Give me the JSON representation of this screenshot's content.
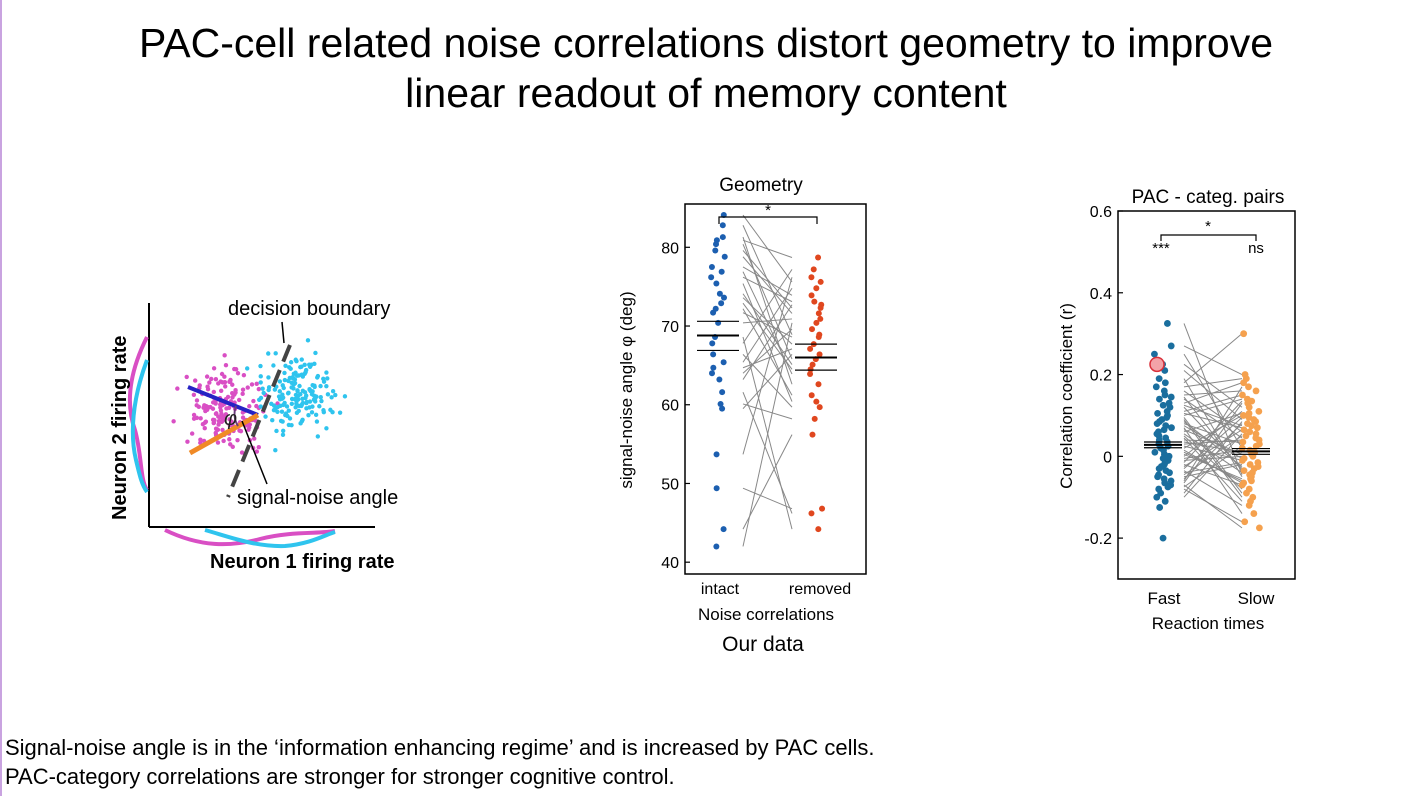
{
  "slide": {
    "title_line1": "PAC-cell related noise correlations distort geometry to improve",
    "title_line2": "linear readout of memory content",
    "bottom_line1": "Signal-noise angle is in the ‘information enhancing regime’ and is increased by PAC cells.",
    "bottom_line2": "PAC-category correlations are stronger for stronger cognitive control."
  },
  "colors": {
    "magenta": "#d94fc4",
    "cyan": "#2fc4ee",
    "blue_line": "#2622c4",
    "orange_line": "#f08a26",
    "intact": "#1c5fb0",
    "removed": "#e0471f",
    "fast": "#1a6e9e",
    "slow": "#f5a14e",
    "pair_line": "#888888"
  },
  "schematic": {
    "y_label": "Neuron 2 firing rate",
    "x_label": "Neuron 1 firing rate",
    "decision_label": "decision boundary",
    "angle_label": "signal-noise angle",
    "phi_symbol": "φ"
  },
  "chart_data": [
    {
      "type": "scatter",
      "title": "Geometry",
      "subtitle": "Our data",
      "xlabel": "Noise correlations",
      "ylabel": "signal-noise angle φ (deg)",
      "categories": [
        "intact",
        "removed"
      ],
      "ylim": [
        38.5,
        85.5
      ],
      "yticks": [
        40,
        50,
        60,
        70,
        80
      ],
      "significance": "*",
      "series": [
        {
          "name": "intact",
          "mean": 68.8,
          "sem_low": 66.9,
          "sem_high": 70.6,
          "values": [
            84.1,
            82.8,
            81.3,
            80.9,
            80.4,
            79.6,
            78.8,
            77.5,
            76.9,
            76.2,
            75.4,
            74.1,
            73.6,
            72.9,
            72.2,
            71.7,
            70.4,
            68.6,
            67.8,
            66.4,
            65.4,
            64.7,
            64.0,
            63.2,
            61.6,
            60.1,
            59.5,
            53.7,
            49.4,
            44.2,
            42.0
          ]
        },
        {
          "name": "removed",
          "mean": 66.0,
          "sem_low": 64.4,
          "sem_high": 67.7,
          "values": [
            78.7,
            77.2,
            76.2,
            75.6,
            74.8,
            73.9,
            73.1,
            72.7,
            72.3,
            71.6,
            70.9,
            70.4,
            69.6,
            68.9,
            68.6,
            67.7,
            67.1,
            66.4,
            65.8,
            65.1,
            64.5,
            63.9,
            62.6,
            61.2,
            60.4,
            59.7,
            58.2,
            56.2,
            46.8,
            46.2,
            44.2
          ]
        }
      ]
    },
    {
      "type": "scatter",
      "title": "PAC - categ. pairs",
      "xlabel": "Reaction times",
      "ylabel": "Correlation coefficient (r)",
      "categories": [
        "Fast",
        "Slow"
      ],
      "ylim": [
        -0.3,
        0.6
      ],
      "yticks": [
        -0.2,
        0,
        0.2,
        0.4,
        0.6
      ],
      "ytick_labels": [
        "-0.2",
        "0",
        "0.2",
        "0.4",
        "0.6"
      ],
      "significance": "*",
      "group_significance": [
        "***",
        "ns"
      ],
      "highlighted_point": 0.225,
      "series": [
        {
          "name": "Fast",
          "mean": 0.028,
          "sem_low": 0.021,
          "sem_high": 0.035,
          "values": [
            0.325,
            0.27,
            0.25,
            0.225,
            0.21,
            0.19,
            0.18,
            0.17,
            0.16,
            0.15,
            0.145,
            0.14,
            0.13,
            0.125,
            0.12,
            0.11,
            0.105,
            0.1,
            0.095,
            0.09,
            0.085,
            0.08,
            0.075,
            0.07,
            0.065,
            0.06,
            0.055,
            0.05,
            0.045,
            0.04,
            0.035,
            0.03,
            0.025,
            0.02,
            0.015,
            0.01,
            0.005,
            0.0,
            -0.005,
            -0.01,
            -0.015,
            -0.02,
            -0.025,
            -0.03,
            -0.035,
            -0.04,
            -0.045,
            -0.05,
            -0.055,
            -0.06,
            -0.065,
            -0.07,
            -0.075,
            -0.08,
            -0.09,
            -0.1,
            -0.11,
            -0.125,
            -0.2
          ]
        },
        {
          "name": "Slow",
          "mean": 0.012,
          "sem_low": 0.005,
          "sem_high": 0.019,
          "values": [
            0.3,
            0.2,
            0.19,
            0.18,
            0.17,
            0.16,
            0.15,
            0.14,
            0.135,
            0.13,
            0.12,
            0.11,
            0.105,
            0.1,
            0.095,
            0.09,
            0.085,
            0.08,
            0.075,
            0.07,
            0.065,
            0.06,
            0.055,
            0.05,
            0.045,
            0.04,
            0.035,
            0.03,
            0.025,
            0.02,
            0.015,
            0.01,
            0.005,
            0.0,
            -0.005,
            -0.01,
            -0.015,
            -0.02,
            -0.025,
            -0.03,
            -0.035,
            -0.04,
            -0.045,
            -0.05,
            -0.055,
            -0.06,
            -0.065,
            -0.07,
            -0.08,
            -0.09,
            -0.1,
            -0.11,
            -0.12,
            -0.14,
            -0.16,
            -0.175
          ]
        }
      ]
    }
  ]
}
